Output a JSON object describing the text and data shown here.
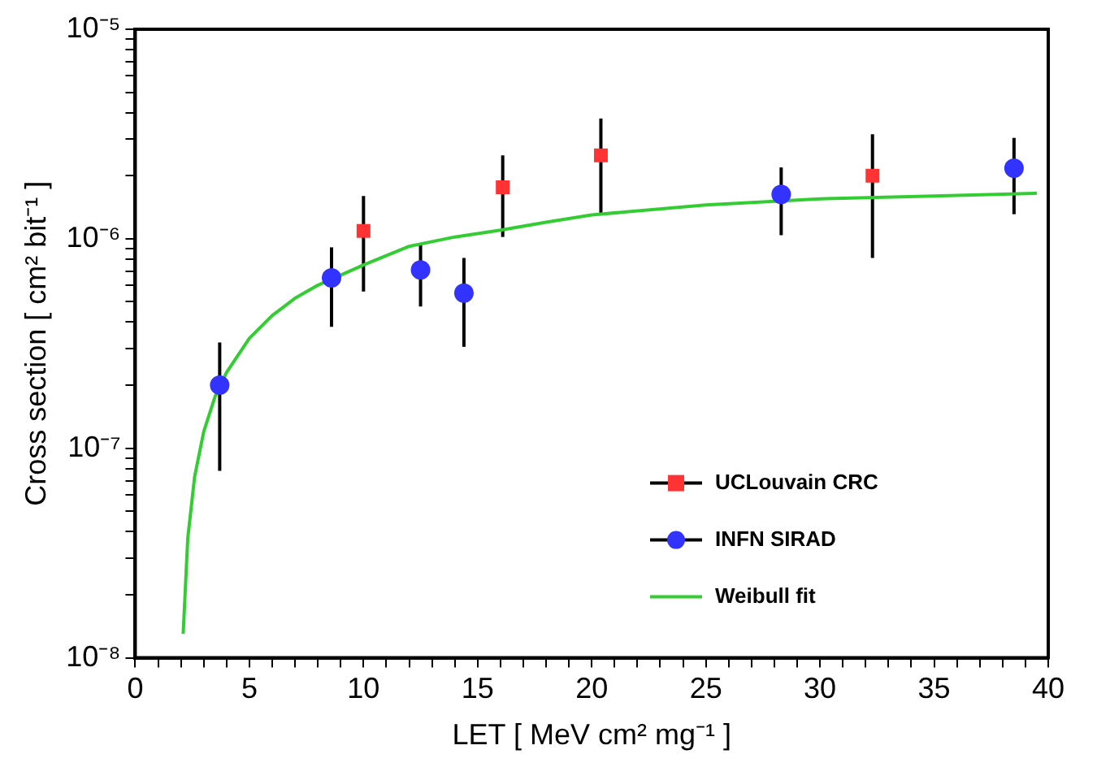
{
  "chart_data": {
    "type": "scatter",
    "xlabel": "LET [ MeV cm² mg⁻¹ ]",
    "ylabel": "Cross section [ cm² bit⁻¹ ]",
    "log": "y",
    "xlim": [
      0,
      40
    ],
    "ylim": [
      1e-08,
      1e-05
    ],
    "xticks": [
      0,
      {
        "value": 1,
        "label": null
      },
      {
        "value": 2,
        "label": null
      },
      {
        "value": 3,
        "label": null
      },
      {
        "value": 4,
        "label": null
      },
      5,
      {
        "value": 6,
        "label": null
      },
      {
        "value": 7,
        "label": null
      },
      {
        "value": 8,
        "label": null
      },
      {
        "value": 9,
        "label": null
      },
      10,
      {
        "value": 11,
        "label": null
      },
      {
        "value": 12,
        "label": null
      },
      {
        "value": 13,
        "label": null
      },
      {
        "value": 14,
        "label": null
      },
      15,
      {
        "value": 16,
        "label": null
      },
      {
        "value": 17,
        "label": null
      },
      {
        "value": 18,
        "label": null
      },
      {
        "value": 19,
        "label": null
      },
      20,
      {
        "value": 21,
        "label": null
      },
      {
        "value": 22,
        "label": null
      },
      {
        "value": 23,
        "label": null
      },
      {
        "value": 24,
        "label": null
      },
      25,
      {
        "value": 26,
        "label": null
      },
      {
        "value": 27,
        "label": null
      },
      {
        "value": 28,
        "label": null
      },
      {
        "value": 29,
        "label": null
      },
      30,
      {
        "value": 31,
        "label": null
      },
      {
        "value": 32,
        "label": null
      },
      {
        "value": 33,
        "label": null
      },
      {
        "value": 34,
        "label": null
      },
      35,
      {
        "value": 36,
        "label": null
      },
      {
        "value": 37,
        "label": null
      },
      {
        "value": 38,
        "label": null
      },
      {
        "value": 39,
        "label": null
      },
      40
    ],
    "yticks": [
      {
        "value": 1e-08,
        "label": "10⁻⁸"
      },
      {
        "value": 2e-08,
        "label": null
      },
      {
        "value": 3e-08,
        "label": null
      },
      {
        "value": 4e-08,
        "label": null
      },
      {
        "value": 5e-08,
        "label": null
      },
      {
        "value": 6e-08,
        "label": null
      },
      {
        "value": 7e-08,
        "label": null
      },
      {
        "value": 8e-08,
        "label": null
      },
      {
        "value": 9e-08,
        "label": null
      },
      {
        "value": 1e-07,
        "label": "10⁻⁷"
      },
      {
        "value": 2e-07,
        "label": null
      },
      {
        "value": 3e-07,
        "label": null
      },
      {
        "value": 4e-07,
        "label": null
      },
      {
        "value": 5e-07,
        "label": null
      },
      {
        "value": 6e-07,
        "label": null
      },
      {
        "value": 7e-07,
        "label": null
      },
      {
        "value": 8e-07,
        "label": null
      },
      {
        "value": 9e-07,
        "label": null
      },
      {
        "value": 1e-06,
        "label": "10⁻⁶"
      },
      {
        "value": 2e-06,
        "label": null
      },
      {
        "value": 3e-06,
        "label": null
      },
      {
        "value": 4e-06,
        "label": null
      },
      {
        "value": 5e-06,
        "label": null
      },
      {
        "value": 6e-06,
        "label": null
      },
      {
        "value": 7e-06,
        "label": null
      },
      {
        "value": 8e-06,
        "label": null
      },
      {
        "value": 9e-06,
        "label": null
      },
      {
        "value": 1e-05,
        "label": "10⁻⁵"
      }
    ],
    "grid": false,
    "legend": "bottom right",
    "series": [
      {
        "name": "UCLouvain CRC",
        "marker": "square",
        "color": "#ff3333",
        "x": [
          10,
          16.1,
          20.4,
          32.3
        ],
        "values": [
          1.09e-06,
          1.76e-06,
          2.5e-06,
          2e-06
        ],
        "errors": [
          [
            5.6e-07,
            1.6e-06
          ],
          [
            1.02e-06,
            2.5e-06
          ],
          [
            1.3e-06,
            3.75e-06
          ],
          [
            8.1e-07,
            3.15e-06
          ]
        ]
      },
      {
        "name": "INFN SIRAD",
        "marker": "circle",
        "color": "#3333ff",
        "x": [
          3.7,
          8.6,
          12.5,
          14.4,
          28.3,
          38.5
        ],
        "values": [
          2e-07,
          6.5e-07,
          7.1e-07,
          5.5e-07,
          1.63e-06,
          2.17e-06
        ],
        "errors": [
          [
            7.8e-08,
            3.2e-07
          ],
          [
            3.8e-07,
            9.1e-07
          ],
          [
            4.75e-07,
            9.4e-07
          ],
          [
            3.05e-07,
            8.1e-07
          ],
          [
            1.04e-06,
            2.19e-06
          ],
          [
            1.31e-06,
            3.03e-06
          ]
        ]
      },
      {
        "name": "Weibull fit",
        "type": "line",
        "marker": "none",
        "line_style": "solid",
        "color": "#33cc33",
        "x": [
          2.1,
          2.3,
          2.6,
          3,
          3.5,
          4,
          5,
          6,
          7,
          8,
          10,
          12,
          14,
          16,
          18,
          20,
          25,
          30,
          35,
          39.5
        ],
        "values": [
          1.3e-08,
          3.7e-08,
          7.3e-08,
          1.2e-07,
          1.77e-07,
          2.3e-07,
          3.35e-07,
          4.3e-07,
          5.2e-07,
          6e-07,
          7.5e-07,
          9.2e-07,
          1.02e-06,
          1.1e-06,
          1.2e-06,
          1.3e-06,
          1.45e-06,
          1.55e-06,
          1.6e-06,
          1.65e-06
        ]
      }
    ]
  }
}
